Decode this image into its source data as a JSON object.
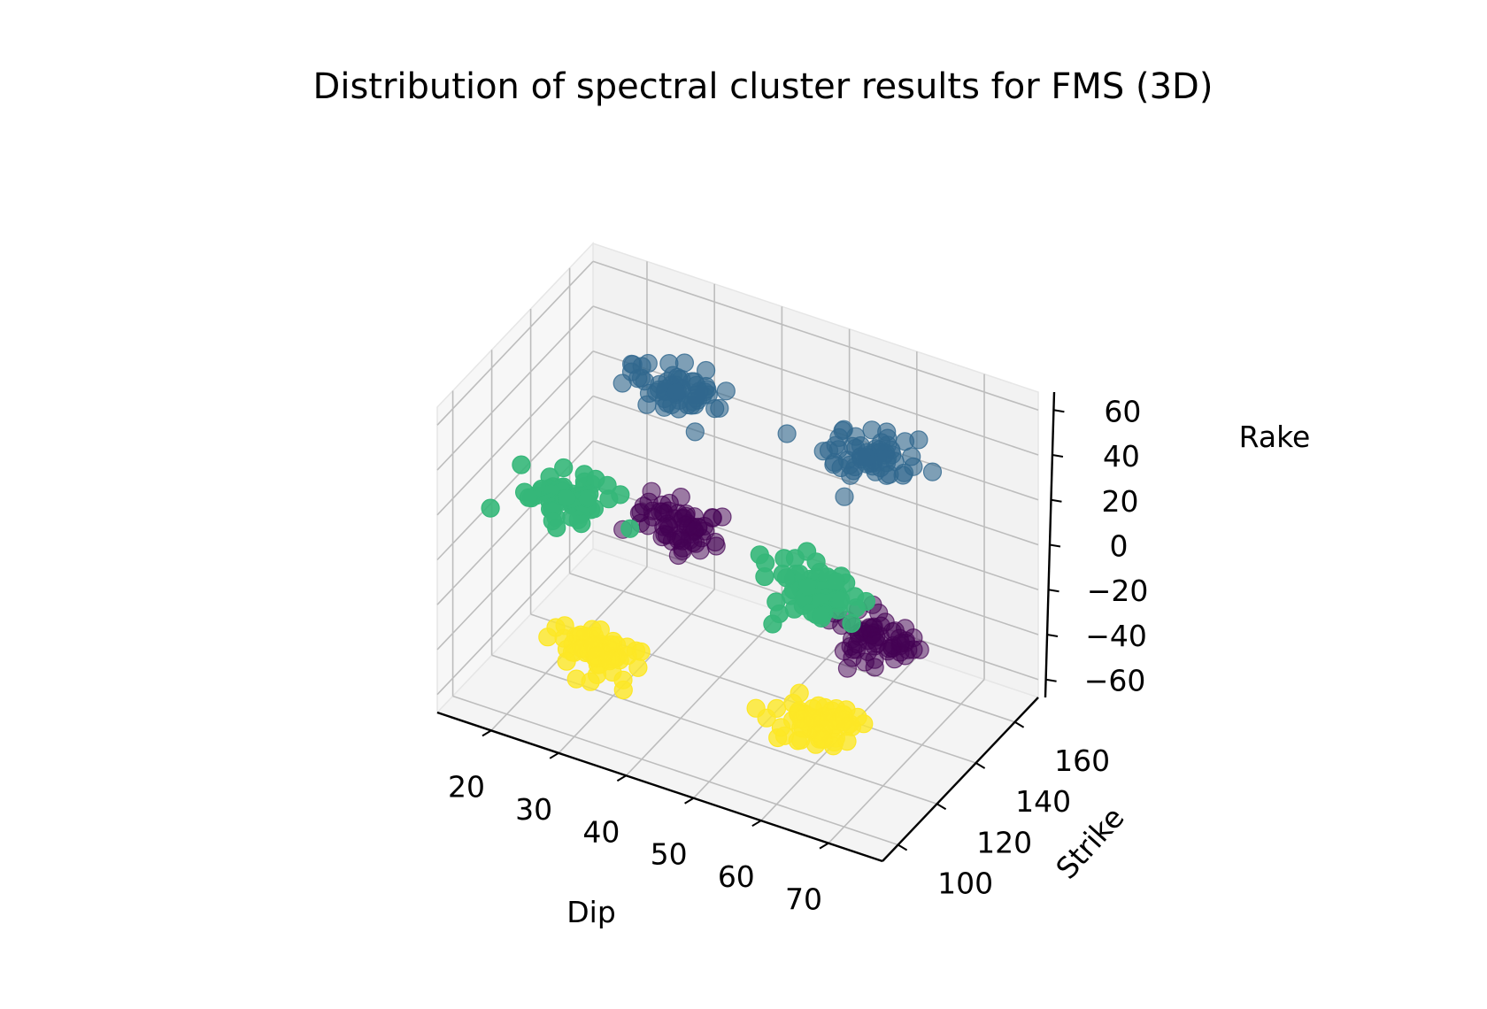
{
  "chart_data": {
    "type": "scatter",
    "title": "Distribution of spectral cluster results for FMS (3D)",
    "xlabel": "Dip",
    "ylabel": "Strike",
    "zlabel": "Rake",
    "xlim": [
      12,
      78
    ],
    "ylim": [
      92,
      172
    ],
    "zlim": [
      -68,
      68
    ],
    "xticks": [
      "20",
      "30",
      "40",
      "50",
      "60",
      "70"
    ],
    "xtick_values": [
      20,
      30,
      40,
      50,
      60,
      70
    ],
    "yticks": [
      "100",
      "120",
      "140",
      "160"
    ],
    "ytick_values": [
      100,
      120,
      140,
      160
    ],
    "zticks": [
      "60",
      "40",
      "20",
      "0",
      "−20",
      "−40",
      "−60"
    ],
    "ztick_values": [
      60,
      40,
      20,
      0,
      -20,
      -40,
      -60
    ],
    "grid": true,
    "legend": "none",
    "clusters": [
      {
        "color": "#440154",
        "alpha": 0.5,
        "center": [
          60,
          150,
          -40
        ],
        "spread": [
          6,
          7,
          7
        ],
        "count": 60
      },
      {
        "color": "#440154",
        "alpha": 0.5,
        "center": [
          28,
          160,
          -30
        ],
        "spread": [
          6,
          7,
          7
        ],
        "count": 60
      },
      {
        "color": "#31688e",
        "alpha": 0.6,
        "center": [
          60,
          150,
          40
        ],
        "spread": [
          6,
          7,
          7
        ],
        "count": 60
      },
      {
        "color": "#31688e",
        "alpha": 0.6,
        "center": [
          28,
          160,
          30
        ],
        "spread": [
          6,
          7,
          7
        ],
        "count": 60
      },
      {
        "color": "#35b779",
        "alpha": 0.9,
        "center": [
          25,
          110,
          25
        ],
        "spread": [
          6,
          7,
          8
        ],
        "count": 60
      },
      {
        "color": "#35b779",
        "alpha": 0.9,
        "center": [
          60,
          120,
          10
        ],
        "spread": [
          6,
          7,
          8
        ],
        "count": 60
      },
      {
        "color": "#fde725",
        "alpha": 0.8,
        "center": [
          30,
          110,
          -40
        ],
        "spread": [
          6,
          7,
          7
        ],
        "count": 60
      },
      {
        "color": "#fde725",
        "alpha": 0.8,
        "center": [
          65,
          105,
          -30
        ],
        "spread": [
          6,
          7,
          7
        ],
        "count": 60
      }
    ]
  }
}
